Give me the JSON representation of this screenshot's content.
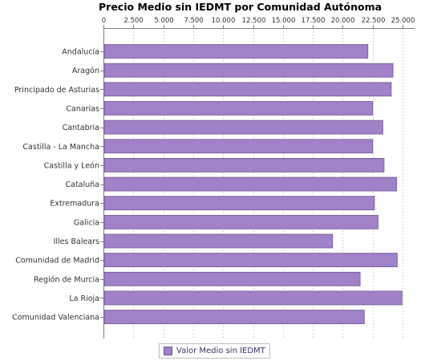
{
  "chart_data": {
    "type": "bar",
    "orientation": "horizontal",
    "title": "Precio Medio sin IEDMT por Comunidad Autónoma",
    "xlabel": "",
    "ylabel": "",
    "xlim": [
      0,
      26000
    ],
    "x_ticks": [
      0,
      2500,
      5000,
      7500,
      10000,
      12500,
      15000,
      17500,
      20000,
      22500,
      25000
    ],
    "x_tick_labels": [
      "0",
      "2.500",
      "5.000",
      "7.500",
      "10.000",
      "12.500",
      "15.000",
      "17.500",
      "20.000",
      "22.500",
      "25.000"
    ],
    "x_axis_position": "top",
    "grid": true,
    "legend_position": "bottom",
    "categories": [
      "Andalucía",
      "Aragón",
      "Principado de Asturias",
      "Canarias",
      "Cantabria",
      "Castilla - La Mancha",
      "Castilla y León",
      "Cataluña",
      "Extremadura",
      "Galicia",
      "Illes Balears",
      "Comunidad de Madrid",
      "Región de Murcia",
      "La Rioja",
      "Comunidad Valenciana"
    ],
    "series": [
      {
        "name": "Valor Medio sin IEDMT",
        "color": "#a082c8",
        "values": [
          22100,
          24200,
          24050,
          22500,
          23350,
          22500,
          23450,
          24500,
          22650,
          22950,
          19150,
          24550,
          21450,
          24950,
          21800
        ]
      }
    ]
  }
}
